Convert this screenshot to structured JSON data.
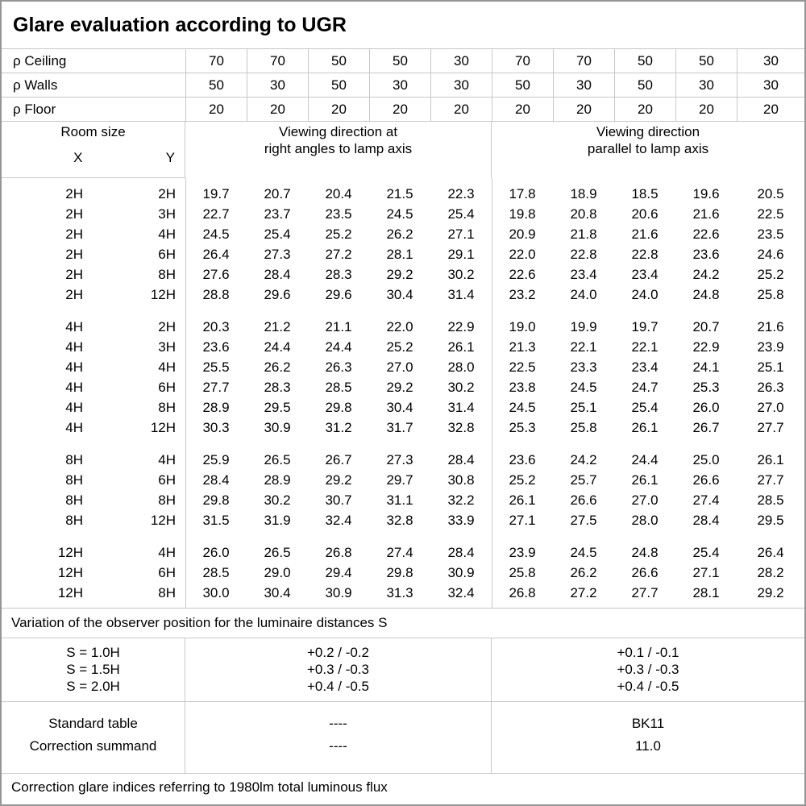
{
  "title": "Glare evaluation according to UGR",
  "colors": {
    "grid_line": "#c8c8c8",
    "outer_border": "#969696",
    "text": "#000000",
    "background": "#ffffff"
  },
  "reflectance": {
    "rows": [
      {
        "label": "ρ Ceiling",
        "values": [
          "70",
          "70",
          "50",
          "50",
          "30",
          "70",
          "70",
          "50",
          "50",
          "30"
        ]
      },
      {
        "label": "ρ Walls",
        "values": [
          "50",
          "30",
          "50",
          "30",
          "30",
          "50",
          "30",
          "50",
          "30",
          "30"
        ]
      },
      {
        "label": "ρ Floor",
        "values": [
          "20",
          "20",
          "20",
          "20",
          "20",
          "20",
          "20",
          "20",
          "20",
          "20"
        ]
      }
    ]
  },
  "header": {
    "room_size_label": "Room size",
    "x_label": "X",
    "y_label": "Y",
    "viewing_right_angles": "Viewing direction at\nright angles to lamp axis",
    "viewing_parallel": "Viewing direction\nparallel to lamp axis"
  },
  "ugr": {
    "blocks": [
      {
        "rows": [
          {
            "x": "2H",
            "y": "2H",
            "values": [
              "19.7",
              "20.7",
              "20.4",
              "21.5",
              "22.3",
              "17.8",
              "18.9",
              "18.5",
              "19.6",
              "20.5"
            ]
          },
          {
            "x": "2H",
            "y": "3H",
            "values": [
              "22.7",
              "23.7",
              "23.5",
              "24.5",
              "25.4",
              "19.8",
              "20.8",
              "20.6",
              "21.6",
              "22.5"
            ]
          },
          {
            "x": "2H",
            "y": "4H",
            "values": [
              "24.5",
              "25.4",
              "25.2",
              "26.2",
              "27.1",
              "20.9",
              "21.8",
              "21.6",
              "22.6",
              "23.5"
            ]
          },
          {
            "x": "2H",
            "y": "6H",
            "values": [
              "26.4",
              "27.3",
              "27.2",
              "28.1",
              "29.1",
              "22.0",
              "22.8",
              "22.8",
              "23.6",
              "24.6"
            ]
          },
          {
            "x": "2H",
            "y": "8H",
            "values": [
              "27.6",
              "28.4",
              "28.3",
              "29.2",
              "30.2",
              "22.6",
              "23.4",
              "23.4",
              "24.2",
              "25.2"
            ]
          },
          {
            "x": "2H",
            "y": "12H",
            "values": [
              "28.8",
              "29.6",
              "29.6",
              "30.4",
              "31.4",
              "23.2",
              "24.0",
              "24.0",
              "24.8",
              "25.8"
            ]
          }
        ]
      },
      {
        "rows": [
          {
            "x": "4H",
            "y": "2H",
            "values": [
              "20.3",
              "21.2",
              "21.1",
              "22.0",
              "22.9",
              "19.0",
              "19.9",
              "19.7",
              "20.7",
              "21.6"
            ]
          },
          {
            "x": "4H",
            "y": "3H",
            "values": [
              "23.6",
              "24.4",
              "24.4",
              "25.2",
              "26.1",
              "21.3",
              "22.1",
              "22.1",
              "22.9",
              "23.9"
            ]
          },
          {
            "x": "4H",
            "y": "4H",
            "values": [
              "25.5",
              "26.2",
              "26.3",
              "27.0",
              "28.0",
              "22.5",
              "23.3",
              "23.4",
              "24.1",
              "25.1"
            ]
          },
          {
            "x": "4H",
            "y": "6H",
            "values": [
              "27.7",
              "28.3",
              "28.5",
              "29.2",
              "30.2",
              "23.8",
              "24.5",
              "24.7",
              "25.3",
              "26.3"
            ]
          },
          {
            "x": "4H",
            "y": "8H",
            "values": [
              "28.9",
              "29.5",
              "29.8",
              "30.4",
              "31.4",
              "24.5",
              "25.1",
              "25.4",
              "26.0",
              "27.0"
            ]
          },
          {
            "x": "4H",
            "y": "12H",
            "values": [
              "30.3",
              "30.9",
              "31.2",
              "31.7",
              "32.8",
              "25.3",
              "25.8",
              "26.1",
              "26.7",
              "27.7"
            ]
          }
        ]
      },
      {
        "rows": [
          {
            "x": "8H",
            "y": "4H",
            "values": [
              "25.9",
              "26.5",
              "26.7",
              "27.3",
              "28.4",
              "23.6",
              "24.2",
              "24.4",
              "25.0",
              "26.1"
            ]
          },
          {
            "x": "8H",
            "y": "6H",
            "values": [
              "28.4",
              "28.9",
              "29.2",
              "29.7",
              "30.8",
              "25.2",
              "25.7",
              "26.1",
              "26.6",
              "27.7"
            ]
          },
          {
            "x": "8H",
            "y": "8H",
            "values": [
              "29.8",
              "30.2",
              "30.7",
              "31.1",
              "32.2",
              "26.1",
              "26.6",
              "27.0",
              "27.4",
              "28.5"
            ]
          },
          {
            "x": "8H",
            "y": "12H",
            "values": [
              "31.5",
              "31.9",
              "32.4",
              "32.8",
              "33.9",
              "27.1",
              "27.5",
              "28.0",
              "28.4",
              "29.5"
            ]
          }
        ]
      },
      {
        "rows": [
          {
            "x": "12H",
            "y": "4H",
            "values": [
              "26.0",
              "26.5",
              "26.8",
              "27.4",
              "28.4",
              "23.9",
              "24.5",
              "24.8",
              "25.4",
              "26.4"
            ]
          },
          {
            "x": "12H",
            "y": "6H",
            "values": [
              "28.5",
              "29.0",
              "29.4",
              "29.8",
              "30.9",
              "25.8",
              "26.2",
              "26.6",
              "27.1",
              "28.2"
            ]
          },
          {
            "x": "12H",
            "y": "8H",
            "values": [
              "30.0",
              "30.4",
              "30.9",
              "31.3",
              "32.4",
              "26.8",
              "27.2",
              "27.7",
              "28.1",
              "29.2"
            ]
          }
        ]
      }
    ]
  },
  "variation_note": "Variation of the observer position for the luminaire distances S",
  "observer_variation": {
    "labels": [
      "S = 1.0H",
      "S = 1.5H",
      "S = 2.0H"
    ],
    "right_angles": [
      "+0.2 / -0.2",
      "+0.3 / -0.3",
      "+0.4 / -0.5"
    ],
    "parallel": [
      "+0.1 / -0.1",
      "+0.3 / -0.3",
      "+0.4 / -0.5"
    ]
  },
  "summary": {
    "labels": [
      "Standard table",
      "Correction summand"
    ],
    "right_angles": [
      "----",
      "----"
    ],
    "parallel": [
      "BK11",
      "11.0"
    ]
  },
  "footer_note": "Correction glare indices referring to 1980lm total luminous flux"
}
